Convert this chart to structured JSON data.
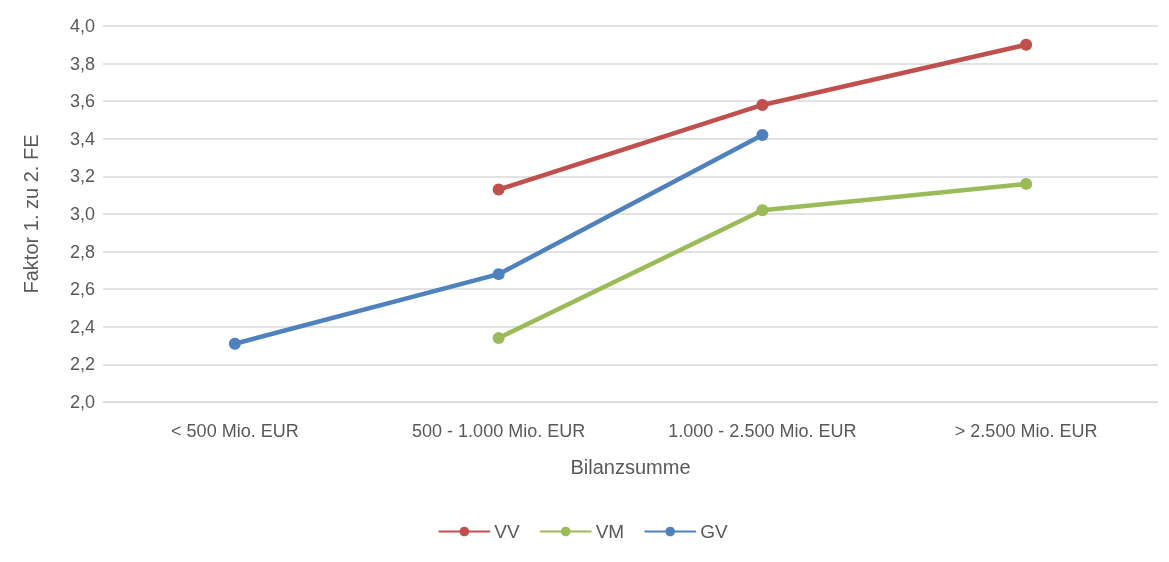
{
  "chart_data": {
    "type": "line",
    "xlabel": "Bilanzsumme",
    "ylabel": "Faktor 1. zu 2. FE",
    "categories": [
      "< 500 Mio. EUR",
      "500 - 1.000 Mio. EUR",
      "1.000 - 2.500 Mio. EUR",
      "> 2.500 Mio. EUR"
    ],
    "series": [
      {
        "name": "VV",
        "color": "#c0504d",
        "values": [
          null,
          3.13,
          3.58,
          3.9
        ]
      },
      {
        "name": "VM",
        "color": "#9bbb59",
        "values": [
          null,
          2.34,
          3.02,
          3.16
        ]
      },
      {
        "name": "GV",
        "color": "#4f81bd",
        "values": [
          2.31,
          2.68,
          3.42,
          null
        ]
      }
    ],
    "ylim": [
      2,
      4
    ],
    "yticks": [
      {
        "value": 2,
        "label": "2,0"
      },
      {
        "value": 2.2,
        "label": "2,2"
      },
      {
        "value": 2.4,
        "label": "2,4"
      },
      {
        "value": 2.6,
        "label": "2,6"
      },
      {
        "value": 2.8,
        "label": "2,8"
      },
      {
        "value": 3,
        "label": "3,0"
      },
      {
        "value": 3.2,
        "label": "3,2"
      },
      {
        "value": 3.4,
        "label": "3,4"
      },
      {
        "value": 3.6,
        "label": "3,6"
      },
      {
        "value": 3.8,
        "label": "3,8"
      },
      {
        "value": 4,
        "label": "4,0"
      }
    ],
    "grid": "y",
    "legend": "bottom",
    "marker": "circle",
    "line_style": "solid"
  }
}
